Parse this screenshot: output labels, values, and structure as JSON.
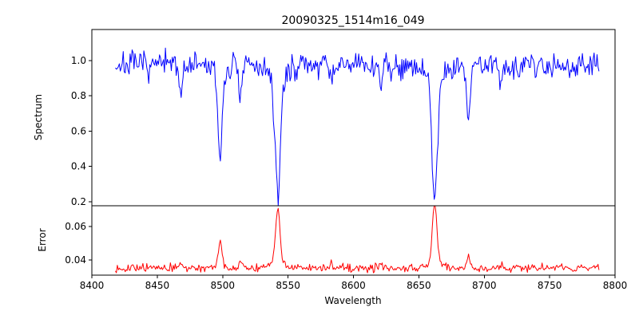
{
  "figure": {
    "title": "20090325_1514m16_049",
    "background": "#ffffff"
  },
  "chart_data": [
    {
      "type": "line",
      "name": "spectrum",
      "title": "20090325_1514m16_049",
      "ylabel": "Spectrum",
      "color": "#0000ff",
      "grid": false,
      "legend": null,
      "xlim": [
        8400,
        8800
      ],
      "ylim": [
        0.177,
        1.176
      ],
      "yticks": [
        0.2,
        0.4,
        0.6,
        0.8,
        1.0
      ],
      "ytick_labels": [
        "0.2",
        "0.4",
        "0.6",
        "0.8",
        "1.0"
      ],
      "x_start": 8418,
      "x_end": 8788,
      "x_step": 0.75,
      "baseline": 0.975,
      "noise_sigma": 0.037,
      "seed": 7,
      "features": [
        {
          "center": 8498.0,
          "amplitude": -0.44,
          "width": 1.7
        },
        {
          "center": 8498.0,
          "amplitude": -0.06,
          "width": 4.5
        },
        {
          "center": 8542.1,
          "amplitude": -0.64,
          "width": 2.0
        },
        {
          "center": 8542.1,
          "amplitude": -0.1,
          "width": 6.0
        },
        {
          "center": 8662.1,
          "amplitude": -0.66,
          "width": 2.0
        },
        {
          "center": 8662.1,
          "amplitude": -0.1,
          "width": 6.0
        },
        {
          "center": 8468.0,
          "amplitude": -0.16,
          "width": 1.2
        },
        {
          "center": 8514.0,
          "amplitude": -0.2,
          "width": 1.3
        },
        {
          "center": 8583.0,
          "amplitude": -0.12,
          "width": 1.1
        },
        {
          "center": 8621.0,
          "amplitude": -0.14,
          "width": 1.1
        },
        {
          "center": 8688.0,
          "amplitude": -0.3,
          "width": 1.4
        },
        {
          "center": 8713.0,
          "amplitude": -0.1,
          "width": 1.0
        }
      ]
    },
    {
      "type": "line",
      "name": "error",
      "ylabel": "Error",
      "xlabel": "Wavelength",
      "color": "#ff0000",
      "grid": false,
      "legend": null,
      "xlim": [
        8400,
        8800
      ],
      "ylim": [
        0.031,
        0.0724
      ],
      "yticks": [
        0.04,
        0.06
      ],
      "ytick_labels": [
        "0.04",
        "0.06"
      ],
      "xticks": [
        8400,
        8450,
        8500,
        8550,
        8600,
        8650,
        8700,
        8750,
        8800
      ],
      "xtick_labels": [
        "8400",
        "8450",
        "8500",
        "8550",
        "8600",
        "8650",
        "8700",
        "8750",
        "8800"
      ],
      "x_start": 8418,
      "x_end": 8788,
      "x_step": 0.75,
      "baseline": 0.0353,
      "noise_sigma": 0.0011,
      "seed": 13,
      "features": [
        {
          "center": 8498.0,
          "amplitude": 0.016,
          "width": 1.5
        },
        {
          "center": 8542.1,
          "amplitude": 0.031,
          "width": 1.6
        },
        {
          "center": 8542.1,
          "amplitude": 0.004,
          "width": 5.0
        },
        {
          "center": 8662.1,
          "amplitude": 0.037,
          "width": 1.6
        },
        {
          "center": 8662.1,
          "amplitude": 0.004,
          "width": 5.0
        },
        {
          "center": 8468.0,
          "amplitude": 0.003,
          "width": 1.2
        },
        {
          "center": 8514.0,
          "amplitude": 0.004,
          "width": 1.2
        },
        {
          "center": 8583.0,
          "amplitude": 0.003,
          "width": 1.0
        },
        {
          "center": 8621.0,
          "amplitude": 0.003,
          "width": 1.0
        },
        {
          "center": 8688.0,
          "amplitude": 0.006,
          "width": 1.2
        },
        {
          "center": 8713.0,
          "amplitude": 0.002,
          "width": 1.0
        }
      ]
    }
  ]
}
